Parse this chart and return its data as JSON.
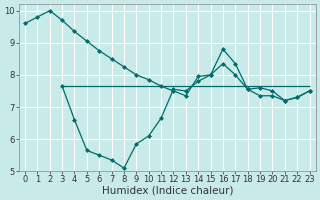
{
  "xlabel": "Humidex (Indice chaleur)",
  "background_color": "#c8eae8",
  "grid_color": "#ffffff",
  "line_color": "#006b6b",
  "xlim": [
    -0.5,
    23.5
  ],
  "ylim": [
    5,
    10.2
  ],
  "yticks": [
    5,
    6,
    7,
    8,
    9,
    10
  ],
  "xticks": [
    0,
    1,
    2,
    3,
    4,
    5,
    6,
    7,
    8,
    9,
    10,
    11,
    12,
    13,
    14,
    15,
    16,
    17,
    18,
    19,
    20,
    21,
    22,
    23
  ],
  "series1_x": [
    0,
    1,
    2,
    3,
    4,
    5,
    6,
    7,
    8,
    9,
    10,
    11,
    12,
    13,
    14,
    15,
    16,
    17,
    18,
    19,
    20,
    21,
    22,
    23
  ],
  "series1_y": [
    9.6,
    9.8,
    10.0,
    9.7,
    9.35,
    9.05,
    8.75,
    8.5,
    8.25,
    8.0,
    7.85,
    7.65,
    7.5,
    7.35,
    7.95,
    8.0,
    8.35,
    8.0,
    7.55,
    7.6,
    7.5,
    7.2,
    7.3,
    7.5
  ],
  "series2_x": [
    3,
    4,
    5,
    6,
    7,
    8,
    9,
    10,
    11,
    12,
    13,
    14,
    15,
    16,
    17,
    18,
    19,
    20,
    21,
    22,
    23
  ],
  "series2_y": [
    7.65,
    6.6,
    5.65,
    5.5,
    5.35,
    5.1,
    5.85,
    6.1,
    6.65,
    7.55,
    7.5,
    7.8,
    8.0,
    8.8,
    8.35,
    7.55,
    7.35,
    7.35,
    7.2,
    7.3,
    7.5
  ],
  "hline_x_start": 3,
  "hline_x_end": 23,
  "hline_y": 7.65,
  "figsize": [
    3.2,
    2.0
  ],
  "dpi": 100,
  "tick_fontsize": 6,
  "label_fontsize": 7.5
}
